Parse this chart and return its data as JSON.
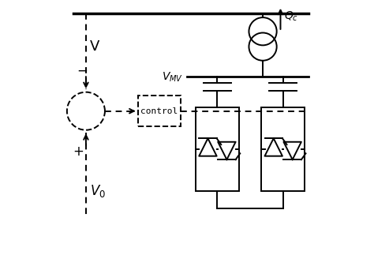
{
  "bg_color": "#ffffff",
  "line_color": "#000000",
  "figsize": [
    4.74,
    3.23
  ],
  "dpi": 100
}
